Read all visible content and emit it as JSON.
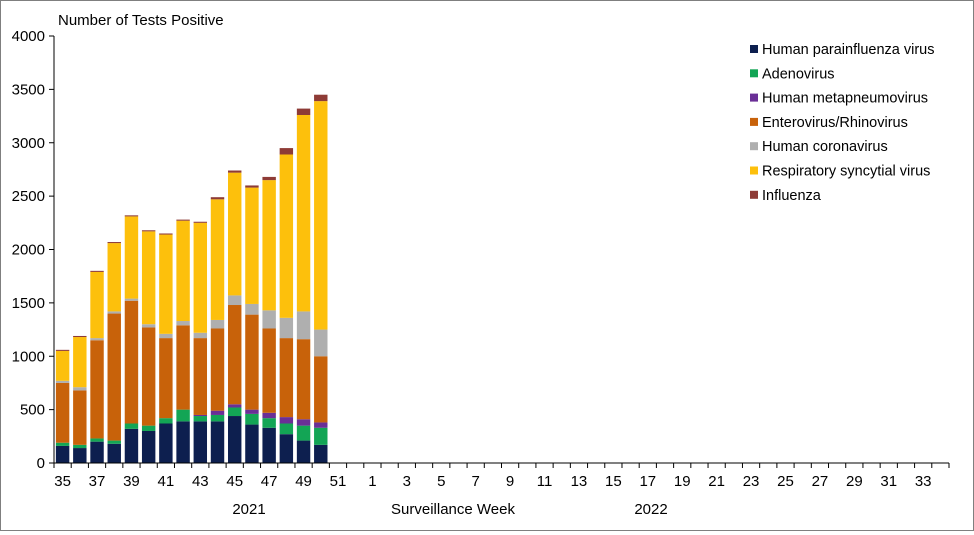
{
  "chart_data": {
    "type": "bar",
    "stacked": true,
    "title": "",
    "ylabel": "Number of Tests Positive",
    "xlabel": "Surveillance Week",
    "ylim": [
      0,
      4000
    ],
    "y_ticks": [
      "0",
      "500",
      "1000",
      "1500",
      "2000",
      "2500",
      "3000",
      "3500",
      "4000"
    ],
    "x_tick_labels": [
      "35",
      "37",
      "39",
      "41",
      "43",
      "45",
      "47",
      "49",
      "51",
      "1",
      "3",
      "5",
      "7",
      "9",
      "11",
      "13",
      "15",
      "17",
      "19",
      "21",
      "23",
      "25",
      "27",
      "29",
      "31",
      "33"
    ],
    "year_labels": [
      "2021",
      "2022"
    ],
    "weeks": [
      "35",
      "36",
      "37",
      "38",
      "39",
      "40",
      "41",
      "42",
      "43",
      "44",
      "45",
      "46",
      "47",
      "48",
      "49",
      "50",
      "51",
      "52",
      "1",
      "2",
      "3",
      "4",
      "5",
      "6",
      "7",
      "8",
      "9",
      "10",
      "11",
      "12",
      "13",
      "14",
      "15",
      "16",
      "17",
      "18",
      "19",
      "20",
      "21",
      "22",
      "23",
      "24",
      "25",
      "26",
      "27",
      "28",
      "29",
      "30",
      "31",
      "32",
      "33",
      "34"
    ],
    "legend_position": "top-right",
    "grid": false,
    "series": [
      {
        "name": "Human parainfluenza virus",
        "color": "#0d1f4f",
        "values": [
          160,
          140,
          200,
          180,
          320,
          300,
          370,
          390,
          390,
          390,
          440,
          360,
          330,
          270,
          210,
          170
        ]
      },
      {
        "name": "Adenovirus",
        "color": "#13a555",
        "values": [
          30,
          30,
          30,
          30,
          50,
          50,
          50,
          110,
          50,
          60,
          80,
          100,
          90,
          100,
          140,
          160
        ]
      },
      {
        "name": "Human metapneumovirus",
        "color": "#6a2f96",
        "values": [
          0,
          0,
          0,
          0,
          0,
          0,
          0,
          0,
          10,
          40,
          30,
          40,
          50,
          60,
          60,
          50
        ]
      },
      {
        "name": "Enterovirus/Rhinovirus",
        "color": "#c8620a",
        "values": [
          560,
          510,
          920,
          1190,
          1150,
          920,
          750,
          790,
          720,
          770,
          930,
          890,
          790,
          740,
          750,
          620
        ]
      },
      {
        "name": "Human coronavirus",
        "color": "#afafaf",
        "values": [
          20,
          30,
          20,
          20,
          20,
          30,
          40,
          40,
          50,
          80,
          90,
          100,
          170,
          190,
          260,
          250
        ]
      },
      {
        "name": "Respiratory syncytial virus",
        "color": "#fdc00c",
        "values": [
          280,
          470,
          620,
          640,
          770,
          870,
          930,
          940,
          1030,
          1130,
          1150,
          1090,
          1220,
          1530,
          1840,
          2140
        ]
      },
      {
        "name": "Influenza",
        "color": "#8e3b36",
        "values": [
          10,
          10,
          10,
          10,
          10,
          10,
          10,
          10,
          10,
          20,
          20,
          20,
          30,
          60,
          60,
          60
        ]
      }
    ]
  }
}
